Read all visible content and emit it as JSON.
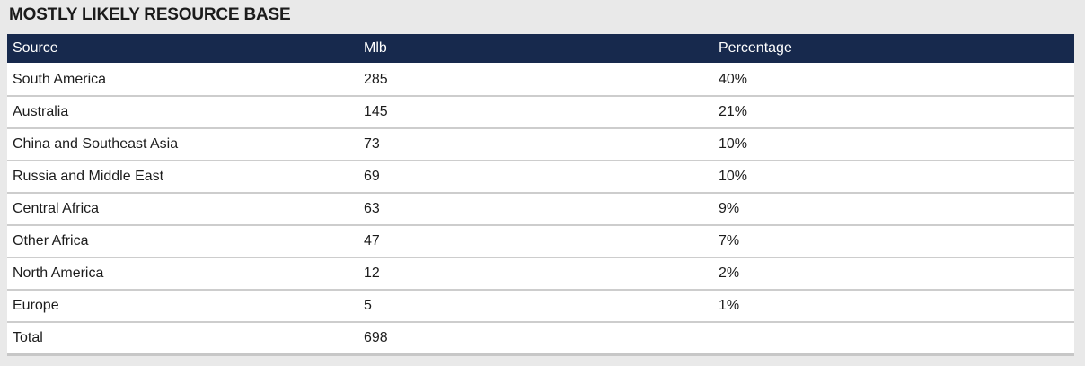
{
  "title": "MOSTLY LIKELY RESOURCE BASE",
  "colors": {
    "page_background": "#e9e9e9",
    "header_background": "#17294d",
    "header_text": "#ffffff",
    "row_background": "#ffffff",
    "body_text": "#1c1c1c",
    "row_separator": "#cdcdcd"
  },
  "table": {
    "columns": [
      "Source",
      "Mlb",
      "Percentage"
    ],
    "rows": [
      [
        "South America",
        "285",
        "40%"
      ],
      [
        "Australia",
        "145",
        "21%"
      ],
      [
        "China and Southeast Asia",
        "73",
        "10%"
      ],
      [
        "Russia and Middle East",
        "69",
        "10%"
      ],
      [
        "Central Africa",
        "63",
        "9%"
      ],
      [
        "Other Africa",
        "47",
        "7%"
      ],
      [
        "North America",
        "12",
        "2%"
      ],
      [
        "Europe",
        "5",
        "1%"
      ],
      [
        "Total",
        "698",
        ""
      ]
    ]
  },
  "chart_data": {
    "type": "table",
    "title": "MOSTLY LIKELY RESOURCE BASE",
    "columns": [
      "Source",
      "Mlb",
      "Percentage"
    ],
    "categories": [
      "South America",
      "Australia",
      "China and Southeast Asia",
      "Russia and Middle East",
      "Central Africa",
      "Other Africa",
      "North America",
      "Europe"
    ],
    "series": [
      {
        "name": "Mlb",
        "values": [
          285,
          145,
          73,
          69,
          63,
          47,
          12,
          5
        ]
      },
      {
        "name": "Percentage",
        "values": [
          40,
          21,
          10,
          10,
          9,
          7,
          2,
          1
        ]
      }
    ],
    "total": {
      "label": "Total",
      "mlb": 698
    }
  }
}
